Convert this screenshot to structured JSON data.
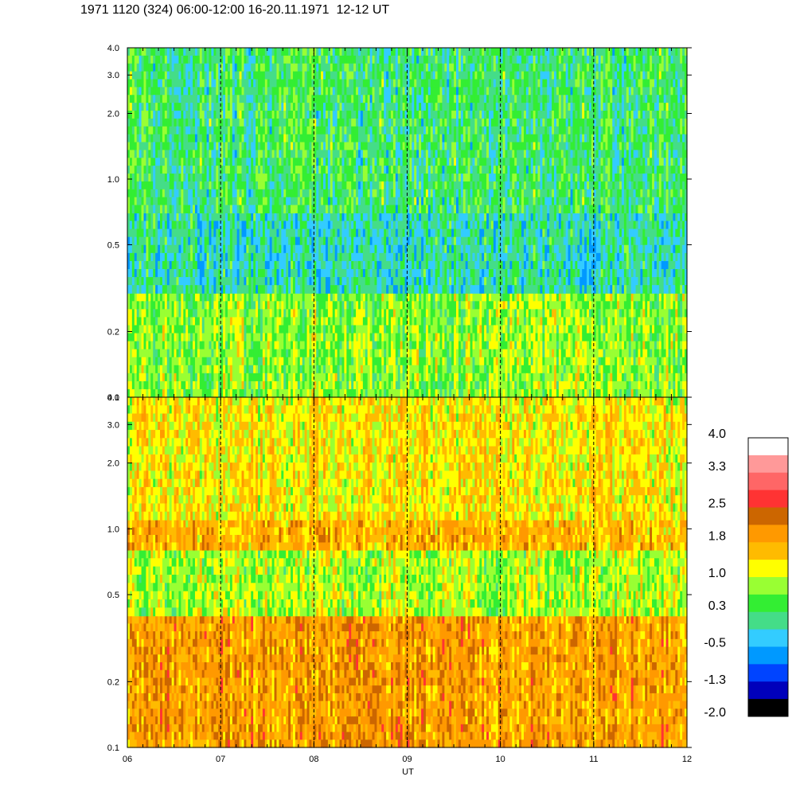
{
  "title": "1971 1120 (324) 06:00-12:00 16-20.11.1971  12-12 UT",
  "chart_data": {
    "type": "heatmap",
    "panels": [
      {
        "name": "",
        "y_scale": "log",
        "ylim": [
          0.1,
          4.0
        ],
        "ytick_labels": [
          "0.1",
          "0.2",
          "0.5",
          "1.0",
          "2.0",
          "3.0",
          "4.0"
        ],
        "ytick_values": [
          0.1,
          0.2,
          0.5,
          1.0,
          2.0,
          3.0,
          4.0
        ],
        "dominant_levels_by_frequency": [
          {
            "freq_range": [
              0.1,
              0.3
            ],
            "level": 0.7
          },
          {
            "freq_range": [
              0.3,
              0.7
            ],
            "level": -0.1
          },
          {
            "freq_range": [
              0.7,
              4.0
            ],
            "level": 0.2
          }
        ]
      },
      {
        "name": "",
        "y_scale": "log",
        "ylim": [
          0.1,
          4.0
        ],
        "ytick_labels": [
          "0.1",
          "0.2",
          "0.5",
          "1.0",
          "2.0",
          "3.0",
          "4.0"
        ],
        "ytick_values": [
          0.1,
          0.2,
          0.5,
          1.0,
          2.0,
          3.0,
          4.0
        ],
        "dominant_levels_by_frequency": [
          {
            "freq_range": [
              0.1,
              0.4
            ],
            "level": 1.9
          },
          {
            "freq_range": [
              0.4,
              0.8
            ],
            "level": 0.9
          },
          {
            "freq_range": [
              0.8,
              1.1
            ],
            "level": 1.7
          },
          {
            "freq_range": [
              1.1,
              4.0
            ],
            "level": 1.3
          }
        ]
      }
    ],
    "x": {
      "label": "UT",
      "range": [
        "06",
        "12"
      ],
      "tick_labels": [
        "06",
        "07",
        "08",
        "09",
        "10",
        "11",
        "12"
      ],
      "tick_values": [
        6,
        7,
        8,
        9,
        10,
        11,
        12
      ],
      "dashed_gridlines_at": [
        7,
        8,
        9,
        10,
        11
      ]
    },
    "colorbar": {
      "labels": [
        "4.0",
        "3.3",
        "2.5",
        "1.8",
        "1.0",
        "0.3",
        "-0.5",
        "-1.3",
        "-2.0"
      ],
      "label_values": [
        4.0,
        3.3,
        2.5,
        1.8,
        1.0,
        0.3,
        -0.5,
        -1.3,
        -2.0
      ],
      "levels_top_to_bottom": [
        {
          "value": 4.0,
          "color": "#ffffff"
        },
        {
          "value": 3.6,
          "color": "#ff9999"
        },
        {
          "value": 3.2,
          "color": "#ff6666"
        },
        {
          "value": 2.8,
          "color": "#ff3333"
        },
        {
          "value": 2.4,
          "color": "#cc6600"
        },
        {
          "value": 2.0,
          "color": "#ff9900"
        },
        {
          "value": 1.6,
          "color": "#ffbb00"
        },
        {
          "value": 1.2,
          "color": "#ffff00"
        },
        {
          "value": 0.8,
          "color": "#99ff33"
        },
        {
          "value": 0.4,
          "color": "#33ee33"
        },
        {
          "value": 0.0,
          "color": "#44dd88"
        },
        {
          "value": -0.4,
          "color": "#33ccff"
        },
        {
          "value": -0.8,
          "color": "#0099ff"
        },
        {
          "value": -1.2,
          "color": "#0044ff"
        },
        {
          "value": -1.6,
          "color": "#0000bb"
        },
        {
          "value": -2.0,
          "color": "#000000"
        }
      ]
    }
  }
}
